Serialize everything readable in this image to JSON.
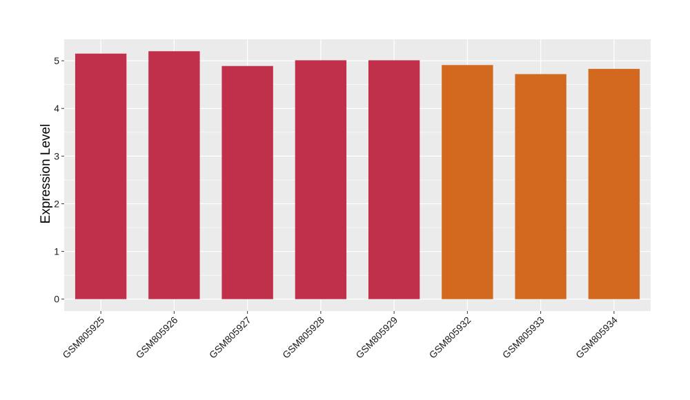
{
  "chart_data": {
    "type": "bar",
    "title": "",
    "xlabel": "",
    "ylabel": "Expression Level",
    "categories": [
      "GSM805925",
      "GSM805926",
      "GSM805927",
      "GSM805928",
      "GSM805929",
      "GSM805932",
      "GSM805933",
      "GSM805934"
    ],
    "values": [
      5.15,
      5.2,
      4.89,
      5.01,
      5.01,
      4.91,
      4.72,
      4.83
    ],
    "bar_colors": [
      "#c0304a",
      "#c0304a",
      "#c0304a",
      "#c0304a",
      "#c0304a",
      "#d2691e",
      "#d2691e",
      "#d2691e"
    ],
    "ylim": [
      -0.25,
      5.45
    ],
    "yticks": [
      0,
      1,
      2,
      3,
      4,
      5
    ],
    "grid": true,
    "legend": "none",
    "panel_background": "#ebebeb",
    "grid_color": "#ffffff"
  }
}
